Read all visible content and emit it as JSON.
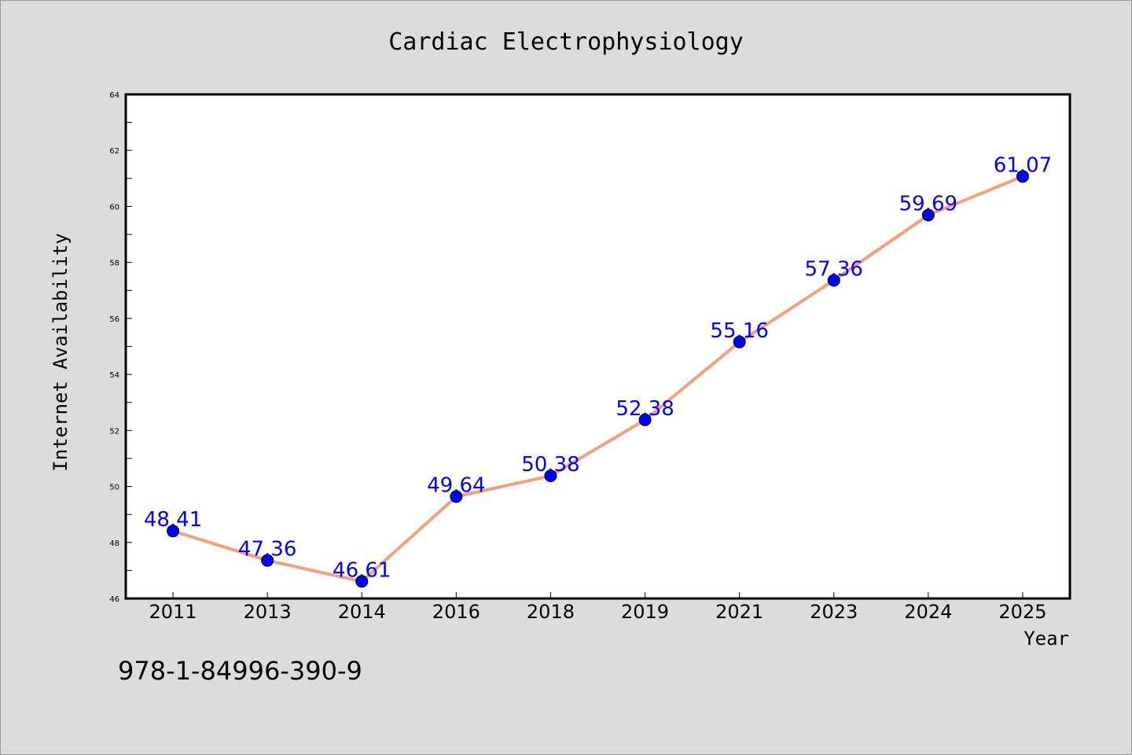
{
  "footer_text": "978-1-84996-390-9",
  "colors": {
    "background": "#dcdcdc",
    "plot_background": "#ffffff",
    "line": "#f4a07e",
    "marker": "#0000ff",
    "data_label": "#0000ff"
  },
  "chart_data": {
    "type": "line",
    "title": "Cardiac Electrophysiology",
    "xlabel": "Year",
    "ylabel": "Internet Availability",
    "categories": [
      "2011",
      "2013",
      "2014",
      "2016",
      "2018",
      "2019",
      "2021",
      "2023",
      "2024",
      "2025"
    ],
    "series": [
      {
        "values": [
          48.41,
          47.36,
          46.61,
          49.64,
          50.38,
          52.38,
          55.16,
          57.36,
          59.69,
          61.07
        ],
        "labels": [
          "48.41",
          "47.36",
          "46.61",
          "49.64",
          "50.38",
          "52.38",
          "55.16",
          "57.36",
          "59.69",
          "61.07"
        ]
      }
    ],
    "ylim": [
      46,
      64
    ],
    "yticks": [
      "46",
      "48",
      "50",
      "52",
      "54",
      "56",
      "58",
      "60",
      "62",
      "64"
    ],
    "grid": false,
    "legend": "none"
  }
}
